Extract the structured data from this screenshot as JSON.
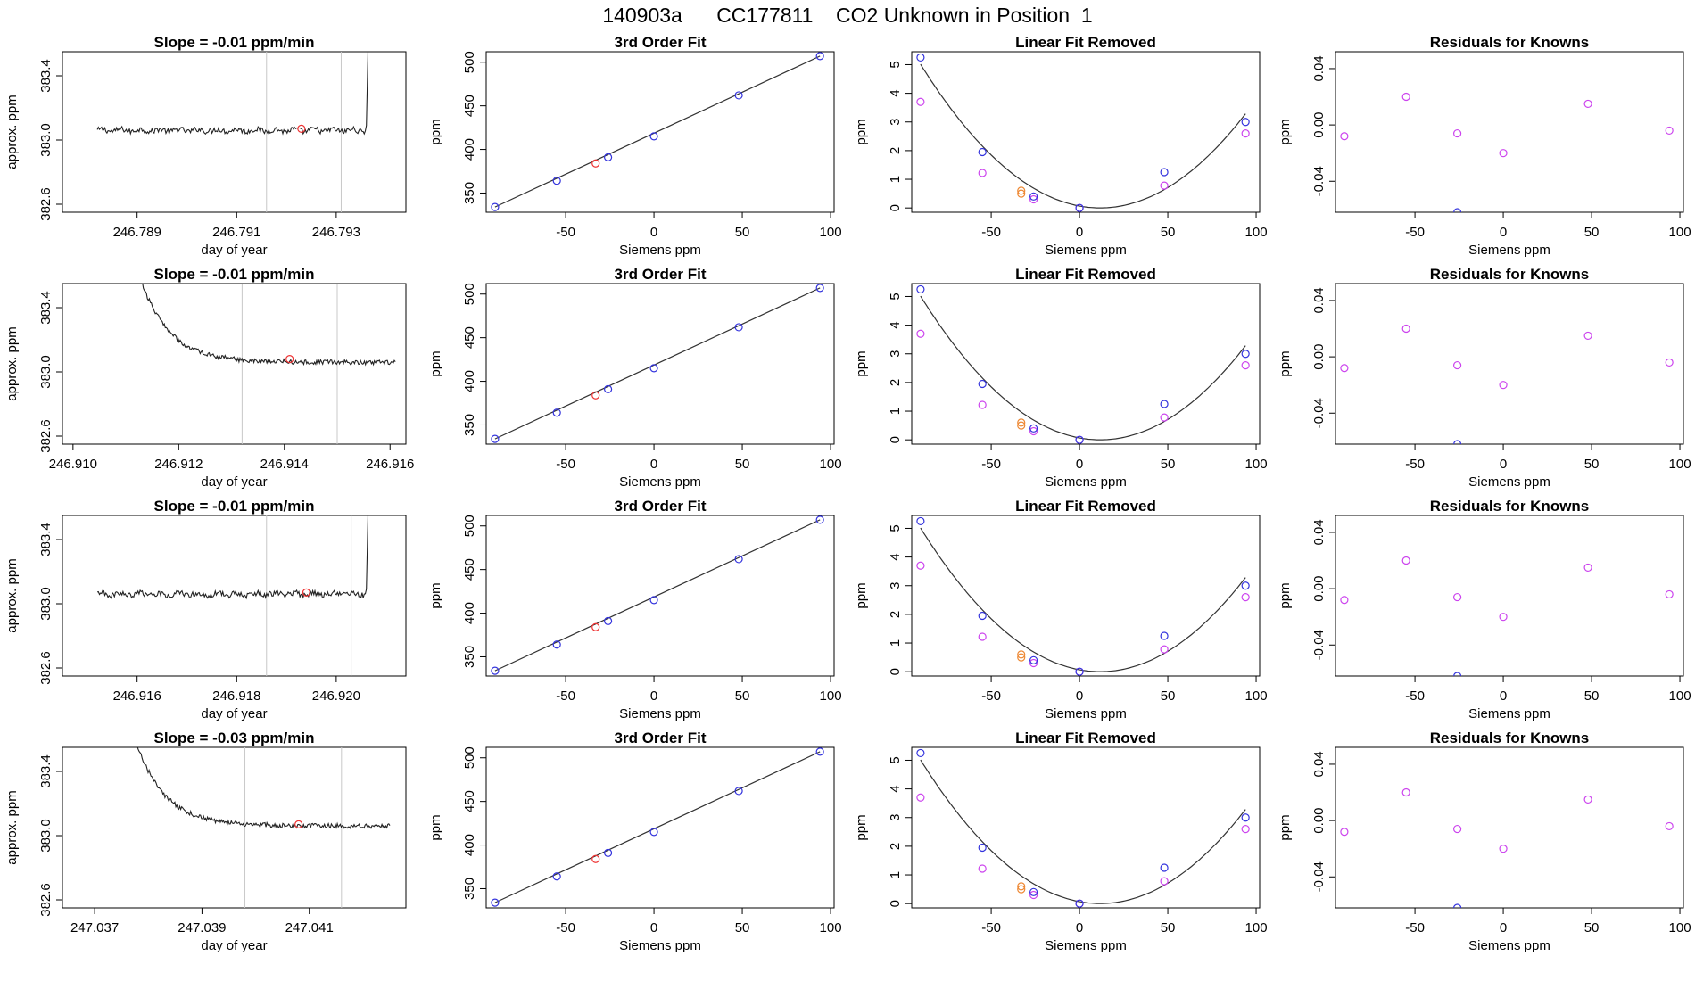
{
  "figure": {
    "title": "140903a      CC177811    CO2 Unknown in Position  1"
  },
  "common": {
    "calibration_known_x": [
      -90,
      -55,
      -26,
      0,
      48,
      94
    ],
    "calibration_known_ppm": [
      334,
      364,
      391,
      415,
      462,
      507
    ],
    "unknown_x": -33,
    "unknown_ppm": 384,
    "linear_removed_known_y": [
      5.25,
      1.95,
      0.4,
      0.0,
      1.25,
      3.0
    ],
    "linear_removed_magenta_y": [
      3.7,
      1.22,
      0.3,
      0.0,
      0.78,
      2.6
    ],
    "linear_removed_unknown_y": [
      0.6,
      0.5
    ],
    "residual_x": [
      -90,
      -55,
      -26,
      0,
      48,
      94
    ],
    "residual_magenta_y": [
      -0.008,
      0.02,
      -0.006,
      -0.02,
      0.015,
      -0.004
    ],
    "residual_blue_x": -26,
    "residual_blue_y": -0.062,
    "x_ticks": [
      -50,
      0,
      50,
      100
    ],
    "x_ticks_labels": [
      "-50",
      "0",
      "50",
      "100"
    ],
    "colors": {
      "line": "#333333",
      "known": "#3333dd",
      "unknown": "#ee3333",
      "magenta": "#cc44ee",
      "orange": "#ee8833",
      "guide": "#c8c8c8"
    }
  },
  "chart_data": [
    {
      "type": "line",
      "row": 1,
      "col": 1,
      "title": "Slope =  -0.01  ppm/min",
      "xlabel": "day of year",
      "ylabel": "approx. ppm",
      "xlim": [
        246.7875,
        246.7944
      ],
      "ylim": [
        382.55,
        383.55
      ],
      "x_ticks": [
        246.789,
        246.791,
        246.793
      ],
      "x_ticks_labels": [
        "246.789",
        "246.791",
        "246.793"
      ],
      "y_ticks": [
        382.6,
        383.0,
        383.4
      ],
      "y_ticks_labels": [
        "382.6",
        "383.0",
        "383.4"
      ],
      "shape": "spike",
      "start_x": 246.7882,
      "end_x": 246.7938,
      "level": 383.06,
      "guide_x": [
        246.7916,
        246.7931
      ],
      "marker": {
        "x": 246.7923,
        "y": 383.07
      }
    },
    {
      "type": "scatter",
      "row": 1,
      "col": 2,
      "title": "3rd Order Fit",
      "xlabel": "Siemens ppm",
      "ylabel": "ppm",
      "xlim": [
        -95,
        102
      ],
      "ylim": [
        328,
        512
      ],
      "y_ticks": [
        350,
        400,
        450,
        500
      ],
      "y_ticks_labels": [
        "350",
        "400",
        "450",
        "500"
      ]
    },
    {
      "type": "scatter",
      "row": 1,
      "col": 3,
      "title": "Linear Fit Removed",
      "xlabel": "Siemens ppm",
      "ylabel": "ppm",
      "xlim": [
        -95,
        102
      ],
      "ylim": [
        -0.15,
        5.45
      ],
      "y_ticks": [
        0,
        1,
        2,
        3,
        4,
        5
      ],
      "y_ticks_labels": [
        "0",
        "1",
        "2",
        "3",
        "4",
        "5"
      ]
    },
    {
      "type": "scatter",
      "row": 1,
      "col": 4,
      "title": "Residuals for Knowns",
      "xlabel": "Siemens ppm",
      "ylabel": "ppm",
      "xlim": [
        -95,
        102
      ],
      "ylim": [
        -0.062,
        0.052
      ],
      "y_ticks": [
        -0.04,
        0.0,
        0.04
      ],
      "y_ticks_labels": [
        "-0.04",
        "0.00",
        "0.04"
      ]
    },
    {
      "type": "line",
      "row": 2,
      "col": 1,
      "title": "Slope =  -0.01  ppm/min",
      "xlabel": "day of year",
      "ylabel": "approx. ppm",
      "xlim": [
        246.9098,
        246.9163
      ],
      "ylim": [
        382.55,
        383.55
      ],
      "x_ticks": [
        246.91,
        246.912,
        246.914,
        246.916
      ],
      "x_ticks_labels": [
        "246.910",
        "246.912",
        "246.914",
        "246.916"
      ],
      "y_ticks": [
        382.6,
        383.0,
        383.4
      ],
      "y_ticks_labels": [
        "382.6",
        "383.0",
        "383.4"
      ],
      "shape": "decay",
      "start_x": 246.9112,
      "end_x": 246.9161,
      "level": 383.06,
      "guide_x": [
        246.9132,
        246.915
      ],
      "marker": {
        "x": 246.9141,
        "y": 383.08
      }
    },
    {
      "type": "scatter",
      "row": 2,
      "col": 2,
      "title": "3rd Order Fit",
      "xlabel": "Siemens ppm",
      "ylabel": "ppm",
      "xlim": [
        -95,
        102
      ],
      "ylim": [
        328,
        512
      ],
      "y_ticks": [
        350,
        400,
        450,
        500
      ],
      "y_ticks_labels": [
        "350",
        "400",
        "450",
        "500"
      ]
    },
    {
      "type": "scatter",
      "row": 2,
      "col": 3,
      "title": "Linear Fit Removed",
      "xlabel": "Siemens ppm",
      "ylabel": "ppm",
      "xlim": [
        -95,
        102
      ],
      "ylim": [
        -0.15,
        5.45
      ],
      "y_ticks": [
        0,
        1,
        2,
        3,
        4,
        5
      ],
      "y_ticks_labels": [
        "0",
        "1",
        "2",
        "3",
        "4",
        "5"
      ]
    },
    {
      "type": "scatter",
      "row": 2,
      "col": 4,
      "title": "Residuals for Knowns",
      "xlabel": "Siemens ppm",
      "ylabel": "ppm",
      "xlim": [
        -95,
        102
      ],
      "ylim": [
        -0.062,
        0.052
      ],
      "y_ticks": [
        -0.04,
        0.0,
        0.04
      ],
      "y_ticks_labels": [
        "-0.04",
        "0.00",
        "0.04"
      ]
    },
    {
      "type": "line",
      "row": 3,
      "col": 1,
      "title": "Slope =  -0.01  ppm/min",
      "xlabel": "day of year",
      "ylabel": "approx. ppm",
      "xlim": [
        246.9145,
        246.9214
      ],
      "ylim": [
        382.55,
        383.55
      ],
      "x_ticks": [
        246.916,
        246.918,
        246.92
      ],
      "x_ticks_labels": [
        "246.916",
        "246.918",
        "246.920"
      ],
      "y_ticks": [
        382.6,
        383.0,
        383.4
      ],
      "y_ticks_labels": [
        "382.6",
        "383.0",
        "383.4"
      ],
      "shape": "spike",
      "start_x": 246.9152,
      "end_x": 246.9208,
      "level": 383.06,
      "guide_x": [
        246.9186,
        246.9203
      ],
      "marker": {
        "x": 246.9194,
        "y": 383.07
      }
    },
    {
      "type": "scatter",
      "row": 3,
      "col": 2,
      "title": "3rd Order Fit",
      "xlabel": "Siemens ppm",
      "ylabel": "ppm",
      "xlim": [
        -95,
        102
      ],
      "ylim": [
        328,
        512
      ],
      "y_ticks": [
        350,
        400,
        450,
        500
      ],
      "y_ticks_labels": [
        "350",
        "400",
        "450",
        "500"
      ]
    },
    {
      "type": "scatter",
      "row": 3,
      "col": 3,
      "title": "Linear Fit Removed",
      "xlabel": "Siemens ppm",
      "ylabel": "ppm",
      "xlim": [
        -95,
        102
      ],
      "ylim": [
        -0.15,
        5.45
      ],
      "y_ticks": [
        0,
        1,
        2,
        3,
        4,
        5
      ],
      "y_ticks_labels": [
        "0",
        "1",
        "2",
        "3",
        "4",
        "5"
      ]
    },
    {
      "type": "scatter",
      "row": 3,
      "col": 4,
      "title": "Residuals for Knowns",
      "xlabel": "Siemens ppm",
      "ylabel": "ppm",
      "xlim": [
        -95,
        102
      ],
      "ylim": [
        -0.062,
        0.052
      ],
      "y_ticks": [
        -0.04,
        0.0,
        0.04
      ],
      "y_ticks_labels": [
        "-0.04",
        "0.00",
        "0.04"
      ]
    },
    {
      "type": "line",
      "row": 4,
      "col": 1,
      "title": "Slope =  -0.03  ppm/min",
      "xlabel": "day of year",
      "ylabel": "approx. ppm",
      "xlim": [
        247.0364,
        247.0428
      ],
      "ylim": [
        382.55,
        383.55
      ],
      "x_ticks": [
        247.037,
        247.039,
        247.041
      ],
      "x_ticks_labels": [
        "247.037",
        "247.039",
        "247.041"
      ],
      "y_ticks": [
        382.6,
        383.0,
        383.4
      ],
      "y_ticks_labels": [
        "382.6",
        "383.0",
        "383.4"
      ],
      "shape": "decay",
      "start_x": 247.0377,
      "end_x": 247.0425,
      "level": 383.06,
      "guide_x": [
        247.0398,
        247.0416
      ],
      "marker": {
        "x": 247.0408,
        "y": 383.07
      }
    },
    {
      "type": "scatter",
      "row": 4,
      "col": 2,
      "title": "3rd Order Fit",
      "xlabel": "Siemens ppm",
      "ylabel": "ppm",
      "xlim": [
        -95,
        102
      ],
      "ylim": [
        328,
        512
      ],
      "y_ticks": [
        350,
        400,
        450,
        500
      ],
      "y_ticks_labels": [
        "350",
        "400",
        "450",
        "500"
      ]
    },
    {
      "type": "scatter",
      "row": 4,
      "col": 3,
      "title": "Linear Fit Removed",
      "xlabel": "Siemens ppm",
      "ylabel": "ppm",
      "xlim": [
        -95,
        102
      ],
      "ylim": [
        -0.15,
        5.45
      ],
      "y_ticks": [
        0,
        1,
        2,
        3,
        4,
        5
      ],
      "y_ticks_labels": [
        "0",
        "1",
        "2",
        "3",
        "4",
        "5"
      ]
    },
    {
      "type": "scatter",
      "row": 4,
      "col": 4,
      "title": "Residuals for Knowns",
      "xlabel": "Siemens ppm",
      "ylabel": "ppm",
      "xlim": [
        -95,
        102
      ],
      "ylim": [
        -0.062,
        0.052
      ],
      "y_ticks": [
        -0.04,
        0.0,
        0.04
      ],
      "y_ticks_labels": [
        "-0.04",
        "0.00",
        "0.04"
      ]
    }
  ]
}
